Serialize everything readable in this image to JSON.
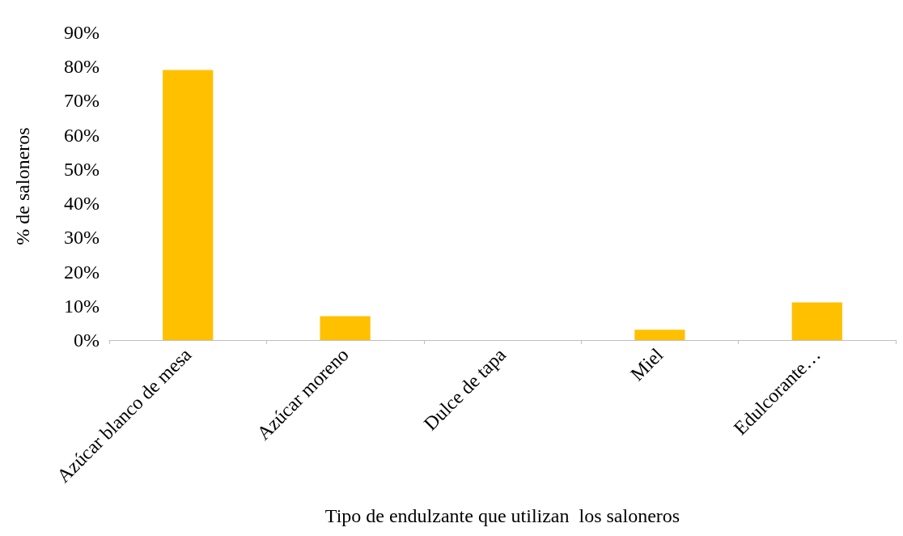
{
  "chart_data": {
    "type": "bar",
    "xlabel": "Tipo de endulzante que utilizan  los saloneros",
    "ylabel": "% de saloneros",
    "categories": [
      "Azúcar blanco de mesa",
      "Azúcar moreno",
      "Dulce de tapa",
      "Miel",
      "Edulcorante…"
    ],
    "values": [
      79,
      7,
      0,
      3,
      11
    ],
    "color": "#ffc000",
    "ylim": [
      0,
      90
    ],
    "yticks": [
      {
        "value": 0,
        "label": "0%"
      },
      {
        "value": 10,
        "label": "10%"
      },
      {
        "value": 20,
        "label": "20%"
      },
      {
        "value": 30,
        "label": "30%"
      },
      {
        "value": 40,
        "label": "40%"
      },
      {
        "value": 50,
        "label": "50%"
      },
      {
        "value": 60,
        "label": "60%"
      },
      {
        "value": 70,
        "label": "70%"
      },
      {
        "value": 80,
        "label": "80%"
      },
      {
        "value": 90,
        "label": "90%"
      }
    ],
    "grid": false
  }
}
